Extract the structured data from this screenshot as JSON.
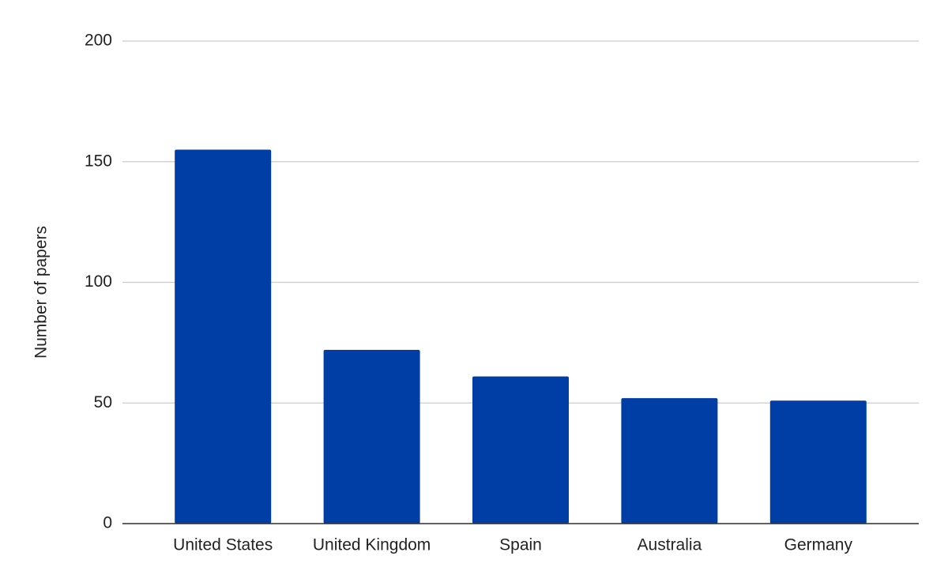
{
  "chart_data": {
    "type": "bar",
    "y_label": "Number of papers",
    "categories": [
      "United States",
      "United Kingdom",
      "Spain",
      "Australia",
      "Germany"
    ],
    "values": [
      155,
      72,
      61,
      52,
      51
    ],
    "color": "#003da5",
    "ylim": [
      0,
      200
    ],
    "yticks": [
      0,
      50,
      100,
      150,
      200
    ],
    "grid": true
  }
}
